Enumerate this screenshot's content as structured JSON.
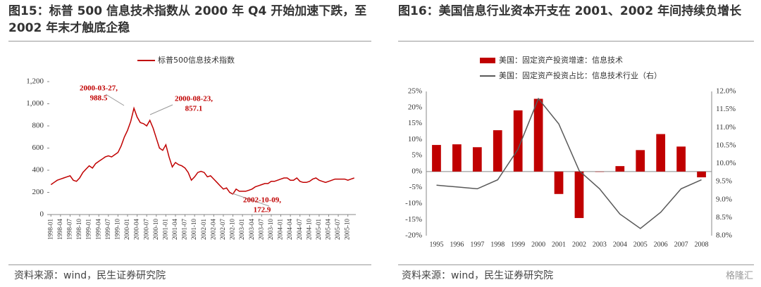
{
  "chart_data": [
    {
      "type": "line",
      "title": "图15：标普 500 信息技术指数从 2000 年 Q4 开始加速下跌，至 2002 年末才触底企稳",
      "source": "资料来源：wind，民生证券研究院",
      "categories": [
        "1998-01",
        null,
        null,
        "1998-04",
        null,
        null,
        "1998-07",
        null,
        null,
        "1998-10",
        null,
        null,
        "1999-01",
        null,
        null,
        "1999-04",
        null,
        null,
        "1999-07",
        null,
        null,
        "1999-10",
        null,
        null,
        "2000-01",
        null,
        null,
        "2000-04",
        null,
        null,
        "2000-07",
        null,
        null,
        "2000-10",
        null,
        null,
        "2001-01",
        null,
        null,
        "2001-04",
        null,
        null,
        "2001-07",
        null,
        null,
        "2001-10",
        null,
        null,
        "2002-01",
        null,
        null,
        "2002-04",
        null,
        null,
        "2002-07",
        null,
        null,
        "2002-10",
        null,
        null,
        "2003-01",
        null,
        null,
        "2003-04",
        null,
        null,
        "2003-07",
        null,
        null,
        "2003-10",
        null,
        null,
        "2004-01",
        null,
        null,
        "2004-04",
        null,
        null,
        "2004-07",
        null,
        null,
        "2004-10",
        null,
        null,
        "2005-01",
        null,
        null,
        "2005-04",
        null,
        null,
        "2005-07",
        null,
        null,
        "2005-10",
        null,
        null
      ],
      "series": [
        {
          "name": "标普500信息技术指数",
          "color": "#c00000",
          "values": [
            270,
            290,
            310,
            320,
            330,
            340,
            350,
            310,
            300,
            330,
            380,
            410,
            440,
            420,
            460,
            480,
            500,
            520,
            530,
            520,
            540,
            560,
            620,
            700,
            760,
            840,
            960,
            880,
            830,
            820,
            800,
            850,
            780,
            690,
            600,
            580,
            630,
            520,
            430,
            470,
            450,
            440,
            420,
            380,
            310,
            340,
            380,
            390,
            380,
            340,
            350,
            320,
            290,
            260,
            230,
            240,
            200,
            185,
            230,
            210,
            210,
            210,
            220,
            230,
            250,
            260,
            270,
            280,
            280,
            300,
            300,
            310,
            320,
            330,
            330,
            310,
            310,
            330,
            300,
            290,
            290,
            300,
            320,
            330,
            310,
            300,
            290,
            300,
            310,
            320,
            320,
            320,
            320,
            310,
            320,
            330
          ]
        }
      ],
      "annotations": [
        {
          "lines": [
            "2000-03-27,",
            "988.5"
          ]
        },
        {
          "lines": [
            "2000-08-23,",
            "857.1"
          ]
        },
        {
          "lines": [
            "2002-10-09,",
            "172.9"
          ]
        }
      ],
      "ylim": [
        0,
        1200
      ],
      "yticks": [
        0,
        200,
        400,
        600,
        800,
        {
          "value": 1000,
          "label": "1,000"
        },
        {
          "value": 1200,
          "label": "1,200"
        }
      ],
      "legend": "top"
    },
    {
      "type": "bar-line",
      "title": "图16：美国信息行业资本开支在 2001、2002 年间持续负增长",
      "source": "资料来源：wind，民生证券研究院",
      "watermark": "格隆汇",
      "categories": [
        "1995",
        "1996",
        "1997",
        "1998",
        "1999",
        "2000",
        "2001",
        "2002",
        "2003",
        "2004",
        "2005",
        "2006",
        "2007",
        "2008"
      ],
      "series": [
        {
          "name": "美国：固定资产投资增速：信息技术",
          "color": "#c00000",
          "kind": "bar",
          "values": [
            8.3,
            8.5,
            7.6,
            12.9,
            19.1,
            22.7,
            -7.0,
            -14.5,
            -0.1,
            1.7,
            6.7,
            11.7,
            7.8,
            -1.8
          ]
        },
        {
          "name": "美国：固定资产投资占比：信息技术行业（右）",
          "color": "#595959",
          "kind": "line",
          "axis": "y2",
          "values": [
            9.4,
            9.35,
            9.3,
            9.55,
            10.4,
            11.8,
            11.1,
            9.8,
            9.3,
            8.6,
            8.2,
            8.65,
            9.3,
            9.55
          ]
        }
      ],
      "ylim": [
        -20,
        25
      ],
      "yticks": [
        {
          "value": -20,
          "label": "-20%"
        },
        {
          "value": -15,
          "label": "-15%"
        },
        {
          "value": -10,
          "label": "-10%"
        },
        {
          "value": -5,
          "label": "-5%"
        },
        {
          "value": 0,
          "label": "0%"
        },
        {
          "value": 5,
          "label": "5%"
        },
        {
          "value": 10,
          "label": "10%"
        },
        {
          "value": 15,
          "label": "15%"
        },
        {
          "value": 20,
          "label": "20%"
        },
        {
          "value": 25,
          "label": "25%"
        }
      ],
      "y2lim": [
        8,
        12
      ],
      "y2ticks": [
        {
          "value": 8,
          "label": "8.0%"
        },
        {
          "value": 8.5,
          "label": "8.5%"
        },
        {
          "value": 9,
          "label": "9.0%"
        },
        {
          "value": 9.5,
          "label": "9.5%"
        },
        {
          "value": 10,
          "label": "10.0%"
        },
        {
          "value": 10.5,
          "label": "10.5%"
        },
        {
          "value": 11,
          "label": "11.0%"
        },
        {
          "value": 11.5,
          "label": "11.5%"
        },
        {
          "value": 12,
          "label": "12.0%"
        }
      ],
      "legend": "top"
    }
  ]
}
